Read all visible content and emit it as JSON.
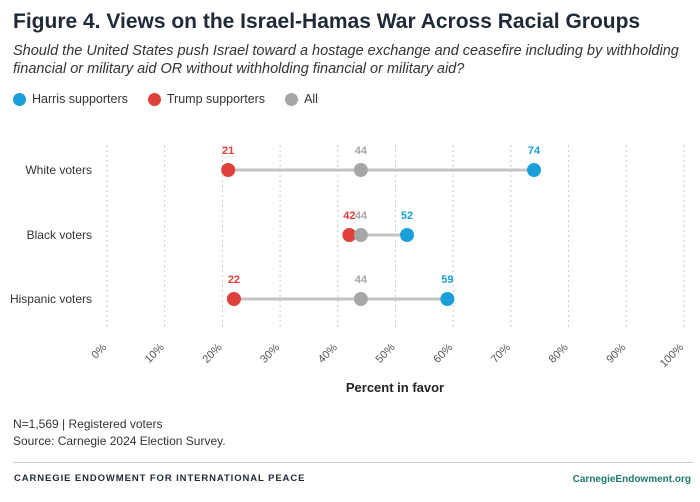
{
  "title": "Figure 4. Views on the Israel-Hamas War Across Racial Groups",
  "subtitle": "Should the United States push Israel toward a hostage exchange and ceasefire including by withholding financial or military aid OR without withholding financial or military aid?",
  "legend": [
    {
      "label": "Harris supporters",
      "color": "#1a9fd9"
    },
    {
      "label": "Trump supporters",
      "color": "#e0403a"
    },
    {
      "label": "All",
      "color": "#a6a6a6"
    }
  ],
  "chart_data": {
    "type": "dot",
    "xlabel": "Percent in favor",
    "xlim": [
      0,
      100
    ],
    "xticks": [
      "0%",
      "10%",
      "20%",
      "30%",
      "40%",
      "50%",
      "60%",
      "70%",
      "80%",
      "90%",
      "100%"
    ],
    "categories": [
      "White voters",
      "Black voters",
      "Hispanic voters"
    ],
    "series": [
      {
        "name": "Trump supporters",
        "color": "#e0403a",
        "values": [
          21,
          42,
          22
        ]
      },
      {
        "name": "All",
        "color": "#a6a6a6",
        "values": [
          44,
          44,
          44
        ]
      },
      {
        "name": "Harris supporters",
        "color": "#1a9fd9",
        "values": [
          74,
          52,
          59
        ]
      }
    ]
  },
  "notes": {
    "sample": "N=1,569 | Registered voters",
    "source": "Source: Carnegie 2024 Election Survey."
  },
  "footer": {
    "org": "CARNEGIE ENDOWMENT FOR INTERNATIONAL PEACE",
    "site": "CarnegieEndowment.org"
  }
}
